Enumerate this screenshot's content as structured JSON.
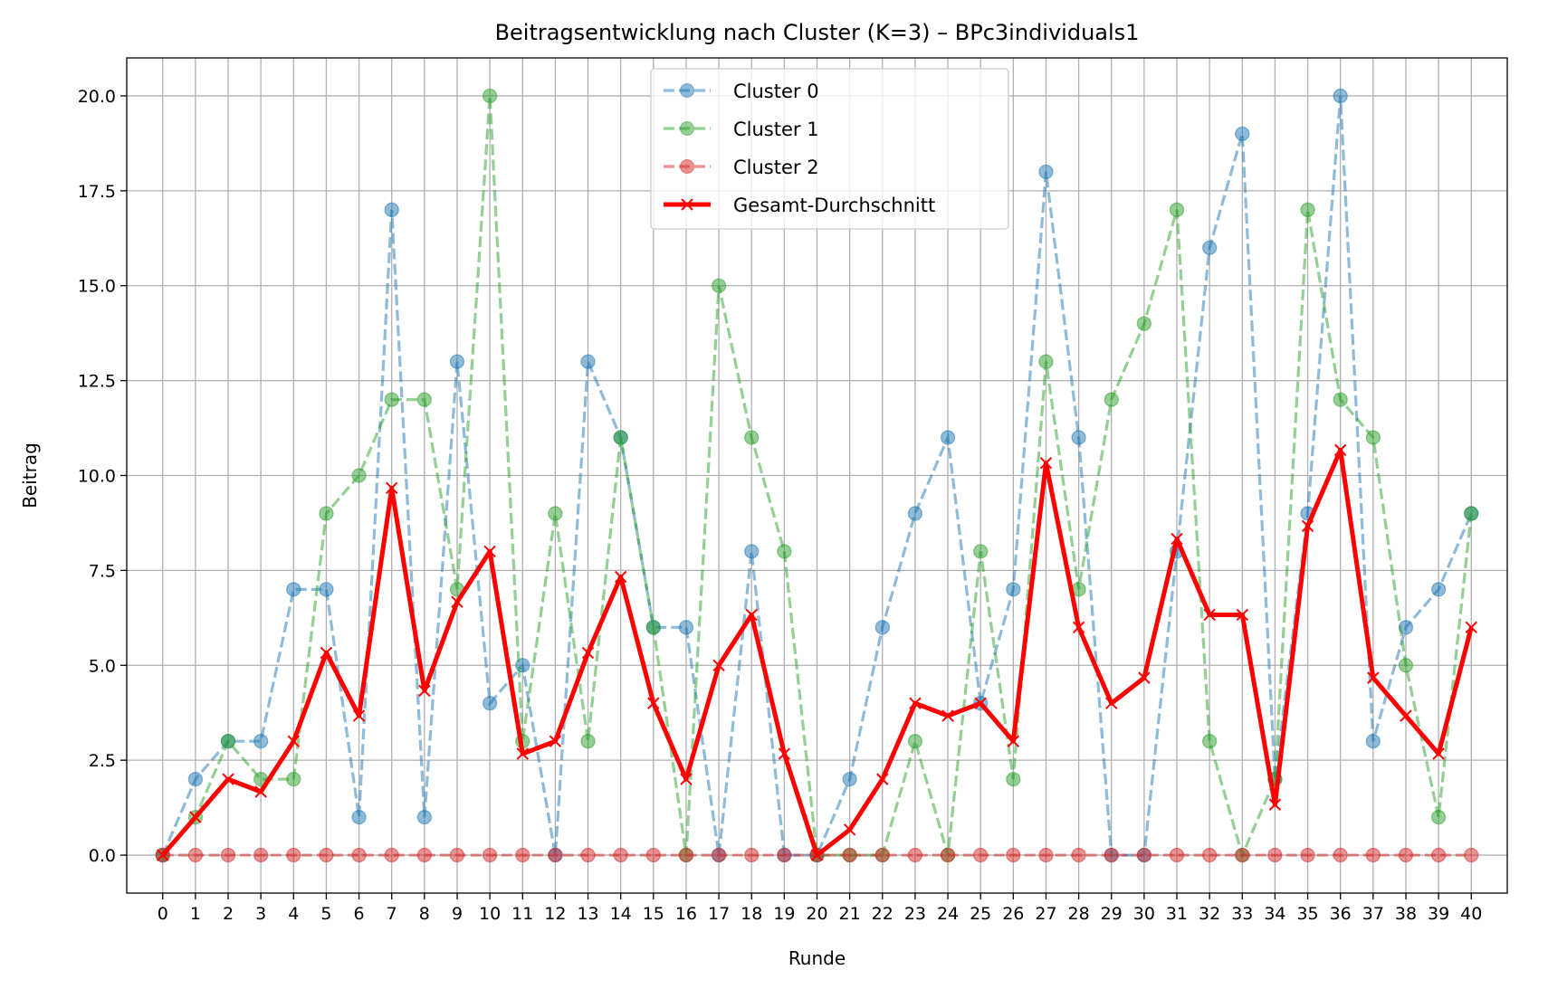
{
  "chart_data": {
    "type": "line",
    "title": "Beitragsentwicklung nach Cluster (K=3) – BPc3individuals1",
    "xlabel": "Runde",
    "ylabel": "Beitrag",
    "x": [
      0,
      1,
      2,
      3,
      4,
      5,
      6,
      7,
      8,
      9,
      10,
      11,
      12,
      13,
      14,
      15,
      16,
      17,
      18,
      19,
      20,
      21,
      22,
      23,
      24,
      25,
      26,
      27,
      28,
      29,
      30,
      31,
      32,
      33,
      34,
      35,
      36,
      37,
      38,
      39,
      40
    ],
    "xticks": [
      "0",
      "1",
      "2",
      "3",
      "4",
      "5",
      "6",
      "7",
      "8",
      "9",
      "10",
      "11",
      "12",
      "13",
      "14",
      "15",
      "16",
      "17",
      "18",
      "19",
      "20",
      "21",
      "22",
      "23",
      "24",
      "25",
      "26",
      "27",
      "28",
      "29",
      "30",
      "31",
      "32",
      "33",
      "34",
      "35",
      "36",
      "37",
      "38",
      "39",
      "40"
    ],
    "xlim": [
      -1.1,
      41.1
    ],
    "ylim": [
      -1.0,
      21.0
    ],
    "yticks": [
      0.0,
      2.5,
      5.0,
      7.5,
      10.0,
      12.5,
      15.0,
      17.5,
      20.0
    ],
    "ytick_labels": [
      "0.0",
      "2.5",
      "5.0",
      "7.5",
      "10.0",
      "12.5",
      "15.0",
      "17.5",
      "20.0"
    ],
    "grid": true,
    "legend_position": "top-center",
    "series": [
      {
        "name": "Cluster 0",
        "color": "#1f77b4",
        "style": "dashed-marker-circle",
        "values": [
          0,
          2,
          3,
          3,
          7,
          7,
          1,
          17,
          1,
          13,
          4,
          5,
          0,
          13,
          11,
          6,
          6,
          0,
          8,
          0,
          0,
          2,
          6,
          9,
          11,
          4,
          7,
          18,
          11,
          0,
          0,
          8,
          16,
          19,
          2,
          9,
          20,
          3,
          6,
          7,
          9
        ]
      },
      {
        "name": "Cluster 1",
        "color": "#2ca02c",
        "style": "dashed-marker-circle",
        "values": [
          0,
          1,
          3,
          2,
          2,
          9,
          10,
          12,
          12,
          7,
          20,
          3,
          9,
          3,
          11,
          6,
          0,
          15,
          11,
          8,
          0,
          0,
          0,
          3,
          0,
          8,
          2,
          13,
          7,
          12,
          14,
          17,
          3,
          0,
          2,
          17,
          12,
          11,
          5,
          1,
          9
        ]
      },
      {
        "name": "Cluster 2",
        "color": "#d62728",
        "style": "dashed-marker-circle",
        "values": [
          0,
          0,
          0,
          0,
          0,
          0,
          0,
          0,
          0,
          0,
          0,
          0,
          0,
          0,
          0,
          0,
          0,
          0,
          0,
          0,
          0,
          0,
          0,
          0,
          0,
          0,
          0,
          0,
          0,
          0,
          0,
          0,
          0,
          0,
          0,
          0,
          0,
          0,
          0,
          0,
          0
        ]
      },
      {
        "name": "Gesamt-Durchschnitt",
        "color": "#ff0000",
        "style": "solid-marker-x",
        "values": [
          0,
          1,
          2,
          1.67,
          3,
          5.33,
          3.67,
          9.67,
          4.33,
          6.67,
          8,
          2.67,
          3,
          5.33,
          7.33,
          4,
          2,
          5,
          6.33,
          2.67,
          0,
          0.67,
          2,
          4,
          3.67,
          4,
          3,
          10.33,
          6,
          4,
          4.67,
          8.33,
          6.33,
          6.33,
          1.33,
          8.67,
          10.67,
          4.67,
          3.67,
          2.67,
          6
        ]
      }
    ]
  }
}
